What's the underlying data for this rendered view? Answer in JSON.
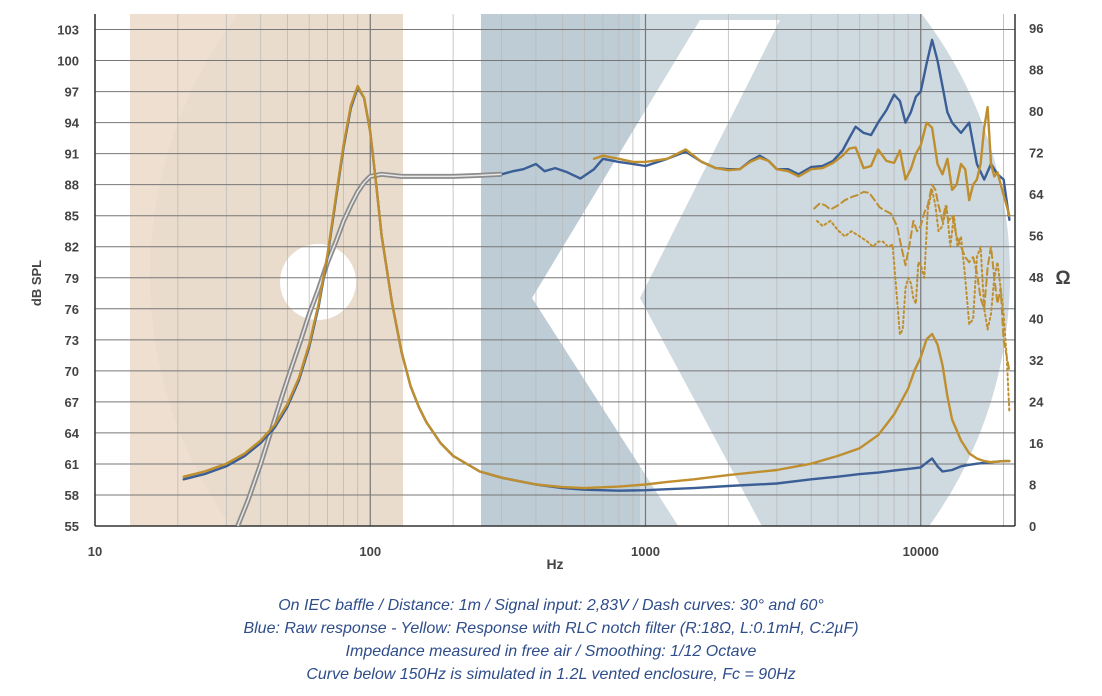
{
  "chart_data": {
    "type": "line",
    "xlabel": "Hz",
    "ylabel_left": "dB SPL",
    "ylabel_right": "Ω",
    "x_scale": "log",
    "xlim": [
      10,
      22000
    ],
    "ylim_left": [
      55,
      104.5
    ],
    "ylim_right": [
      0,
      98.67
    ],
    "x_ticks": [
      "10",
      "100",
      "1000",
      "10000"
    ],
    "y_ticks_left": [
      "103",
      "100",
      "97",
      "94",
      "91",
      "88",
      "85",
      "82",
      "79",
      "76",
      "73",
      "70",
      "67",
      "64",
      "61",
      "58",
      "55"
    ],
    "y_ticks_right": [
      "96",
      "88",
      "80",
      "72",
      "64",
      "56",
      "48",
      "40",
      "32",
      "24",
      "16",
      "8",
      "0"
    ],
    "grid": true,
    "colors": {
      "blue": "#3a5e95",
      "yellow": "#bf8f2f",
      "grey": "#8c8c8c",
      "grid_major": "#777777",
      "grid_minor": "#bbbbbb",
      "background_beige": "#ecdccb",
      "background_slate": "#b4c5cf"
    },
    "series": [
      {
        "axis": "left",
        "style": "solid",
        "color": "#3a5e95",
        "x": [
          300,
          330,
          360,
          400,
          430,
          470,
          520,
          580,
          650,
          700,
          800,
          900,
          1000,
          1200,
          1400,
          1600,
          1800,
          2000,
          2200,
          2400,
          2600,
          2800,
          3000,
          3300,
          3600,
          4000,
          4400,
          4800,
          5200,
          5500,
          5800,
          6200,
          6600,
          7000,
          7500,
          8000,
          8400,
          8800,
          9200,
          9600,
          10000,
          10500,
          11000,
          11500,
          12000,
          12500,
          13000,
          14000,
          15000,
          16000,
          17000,
          18000,
          19000,
          20000,
          21000
        ],
        "y": [
          89.0,
          89.3,
          89.5,
          90.0,
          89.3,
          89.6,
          89.2,
          88.6,
          89.5,
          90.5,
          90.2,
          90.0,
          89.8,
          90.5,
          91.2,
          90.2,
          89.6,
          89.5,
          89.5,
          90.3,
          90.8,
          90.3,
          89.5,
          89.5,
          89.0,
          89.7,
          89.8,
          90.3,
          91.3,
          92.5,
          93.6,
          93.0,
          92.8,
          94.0,
          95.2,
          96.7,
          96.1,
          94.0,
          95.0,
          96.5,
          97.0,
          99.7,
          102.0,
          100.0,
          97.5,
          95.0,
          94.0,
          93.0,
          94.0,
          90.0,
          88.5,
          90.0,
          89.0,
          88.5,
          84.6
        ]
      },
      {
        "axis": "left",
        "style": "solid",
        "color": "#bf8f2f",
        "x": [
          650,
          700,
          800,
          900,
          1000,
          1200,
          1400,
          1600,
          1800,
          2000,
          2200,
          2400,
          2600,
          2800,
          3000,
          3300,
          3600,
          4000,
          4400,
          4800,
          5200,
          5500,
          5800,
          6200,
          6600,
          7000,
          7500,
          8000,
          8400,
          8800,
          9200,
          9600,
          10000,
          10500,
          11000,
          11500,
          12000,
          12500,
          13000,
          13500,
          14000,
          14500,
          15000,
          15500,
          16000,
          16500,
          17000,
          17500,
          18000,
          18500,
          19000,
          20000,
          21000
        ],
        "y": [
          90.5,
          90.8,
          90.5,
          90.2,
          90.2,
          90.5,
          91.4,
          90.2,
          89.6,
          89.4,
          89.5,
          90.2,
          90.6,
          90.3,
          89.5,
          89.3,
          88.8,
          89.5,
          89.6,
          90.1,
          90.8,
          91.5,
          91.6,
          89.6,
          89.8,
          91.4,
          90.3,
          90.1,
          91.3,
          88.5,
          89.5,
          91.0,
          91.8,
          94.0,
          93.5,
          90.0,
          89.0,
          90.5,
          87.5,
          88.0,
          90.0,
          89.5,
          86.5,
          88.0,
          88.5,
          90.0,
          93.5,
          95.5,
          90.0,
          88.8,
          89.2,
          87.0,
          85.0
        ]
      },
      {
        "axis": "left",
        "style": "dashed",
        "color": "#bf8f2f",
        "x": [
          4100,
          4300,
          4500,
          4700,
          5000,
          5300,
          5600,
          5900,
          6200,
          6500,
          6800,
          7100,
          7400,
          7800,
          8200,
          8500,
          8800,
          9100,
          9400,
          9700,
          10000,
          10300,
          10600,
          11000,
          11300,
          11600,
          12000,
          12300,
          12600,
          13000,
          13500,
          14000,
          14500,
          15000,
          15500,
          16000,
          16500,
          17000,
          17500,
          18000,
          18500,
          19000,
          19500,
          20000,
          21000
        ],
        "y": [
          85.7,
          86.2,
          86.0,
          85.6,
          86.0,
          86.5,
          86.8,
          87.0,
          87.3,
          87.2,
          86.5,
          85.8,
          85.5,
          85.2,
          84.0,
          82.0,
          80.2,
          82.2,
          84.5,
          83.5,
          84.0,
          85.3,
          86.0,
          88.0,
          87.5,
          86.0,
          84.5,
          86.0,
          84.5,
          85.0,
          83.0,
          82.0,
          81.0,
          80.5,
          81.0,
          79.5,
          77.0,
          76.0,
          80.0,
          82.0,
          79.0,
          76.5,
          78.0,
          73.0,
          70.0
        ]
      },
      {
        "axis": "left",
        "style": "dotted",
        "color": "#bf8f2f",
        "x": [
          4200,
          4400,
          4700,
          5000,
          5300,
          5600,
          6000,
          6400,
          6700,
          7000,
          7300,
          7600,
          7900,
          8200,
          8400,
          8600,
          8800,
          9000,
          9200,
          9400,
          9600,
          9800,
          10000,
          10300,
          10600,
          11000,
          11300,
          11600,
          12000,
          12400,
          12800,
          13200,
          13600,
          14000,
          14500,
          15000,
          15500,
          16000,
          16500,
          17000,
          17500,
          18000,
          18500,
          19000,
          19500,
          20000,
          20500,
          21000
        ],
        "y": [
          84.5,
          84.0,
          84.5,
          83.6,
          83.0,
          83.5,
          83.0,
          82.5,
          82.0,
          82.5,
          82.5,
          82.0,
          82.2,
          77.0,
          73.5,
          74.0,
          78.0,
          79.0,
          78.5,
          77.0,
          76.5,
          80.5,
          80.2,
          79.0,
          85.5,
          87.5,
          86.0,
          83.5,
          84.0,
          86.0,
          82.0,
          85.0,
          82.0,
          83.0,
          79.0,
          74.5,
          75.0,
          81.0,
          82.0,
          76.0,
          74.0,
          75.5,
          79.0,
          80.5,
          78.0,
          75.5,
          71.5,
          66.0
        ]
      },
      {
        "axis": "left",
        "style": "solid",
        "color": "#8c8c8c",
        "x": [
          33,
          36,
          40,
          44,
          48,
          52,
          56,
          60,
          65,
          70,
          75,
          80,
          85,
          90,
          95,
          100,
          110,
          120,
          130,
          150,
          170,
          200,
          250,
          300
        ],
        "y": [
          55.0,
          57.5,
          61.0,
          64.5,
          67.7,
          70.5,
          73.0,
          75.5,
          78.0,
          80.5,
          82.5,
          84.5,
          86.0,
          87.3,
          88.2,
          88.8,
          89.0,
          88.9,
          88.8,
          88.8,
          88.8,
          88.8,
          88.9,
          89.0
        ]
      },
      {
        "axis": "right",
        "style": "solid",
        "color": "#3a5e95",
        "x": [
          21,
          25,
          30,
          35,
          40,
          45,
          50,
          55,
          60,
          65,
          70,
          75,
          80,
          85,
          90,
          95,
          100,
          105,
          110,
          120,
          130,
          140,
          150,
          160,
          180,
          200,
          250,
          300,
          400,
          500,
          600,
          800,
          1000,
          1200,
          1500,
          2000,
          3000,
          4000,
          5000,
          6000,
          7000,
          8000,
          9000,
          10000,
          10500,
          11000,
          11500,
          12000,
          13000,
          14000,
          15000,
          16000,
          18000,
          20000,
          21000
        ],
        "y": [
          9.0,
          10.0,
          11.5,
          13.5,
          16.0,
          19.0,
          23.0,
          28.0,
          34.5,
          42.5,
          52.0,
          63.0,
          73.0,
          80.5,
          84.5,
          82.5,
          76.0,
          66.0,
          56.0,
          43.0,
          33.5,
          27.0,
          23.0,
          20.0,
          16.0,
          13.5,
          10.5,
          9.3,
          8.0,
          7.3,
          7.0,
          6.8,
          6.9,
          7.1,
          7.3,
          7.7,
          8.2,
          9.0,
          9.5,
          10.0,
          10.3,
          10.7,
          11.0,
          11.3,
          12.2,
          13.0,
          11.5,
          10.5,
          10.8,
          11.5,
          11.8,
          12.0,
          12.3,
          12.5,
          12.5
        ]
      },
      {
        "axis": "right",
        "style": "solid",
        "color": "#bf8f2f",
        "x": [
          21,
          25,
          30,
          35,
          40,
          45,
          50,
          55,
          60,
          65,
          70,
          75,
          80,
          85,
          90,
          95,
          100,
          105,
          110,
          120,
          130,
          140,
          150,
          160,
          180,
          200,
          250,
          300,
          400,
          500,
          600,
          800,
          1000,
          1200,
          1500,
          2000,
          3000,
          4000,
          5000,
          6000,
          7000,
          8000,
          9000,
          9500,
          10000,
          10500,
          11000,
          11500,
          12000,
          12500,
          13000,
          14000,
          15000,
          16000,
          17000,
          18000,
          20000,
          21000
        ],
        "y": [
          9.5,
          10.5,
          12.0,
          14.0,
          16.5,
          19.5,
          23.5,
          28.5,
          35.0,
          43.0,
          52.5,
          63.5,
          73.5,
          81.0,
          84.8,
          82.5,
          76.0,
          66.0,
          56.0,
          43.0,
          33.5,
          27.0,
          23.0,
          20.0,
          16.0,
          13.5,
          10.5,
          9.3,
          8.0,
          7.5,
          7.3,
          7.6,
          8.0,
          8.5,
          9.0,
          9.8,
          10.8,
          12.0,
          13.5,
          15.0,
          17.5,
          21.5,
          26.5,
          30.0,
          32.5,
          36.0,
          37.0,
          35.0,
          31.0,
          25.0,
          20.5,
          16.5,
          14.0,
          13.0,
          12.5,
          12.3,
          12.5,
          12.5
        ]
      }
    ]
  },
  "captions": [
    "On IEC baffle / Distance: 1m / Signal input: 2,83V / Dash curves: 30° and 60°",
    "Blue: Raw response - Yellow: Response with RLC notch filter (R:18Ω, L:0.1mH, C:2µF)",
    "Impedance measured in free air / Smoothing: 1/12 Octave",
    "Curve below 150Hz is simulated in 1.2L vented enclosure, Fc = 90Hz"
  ]
}
